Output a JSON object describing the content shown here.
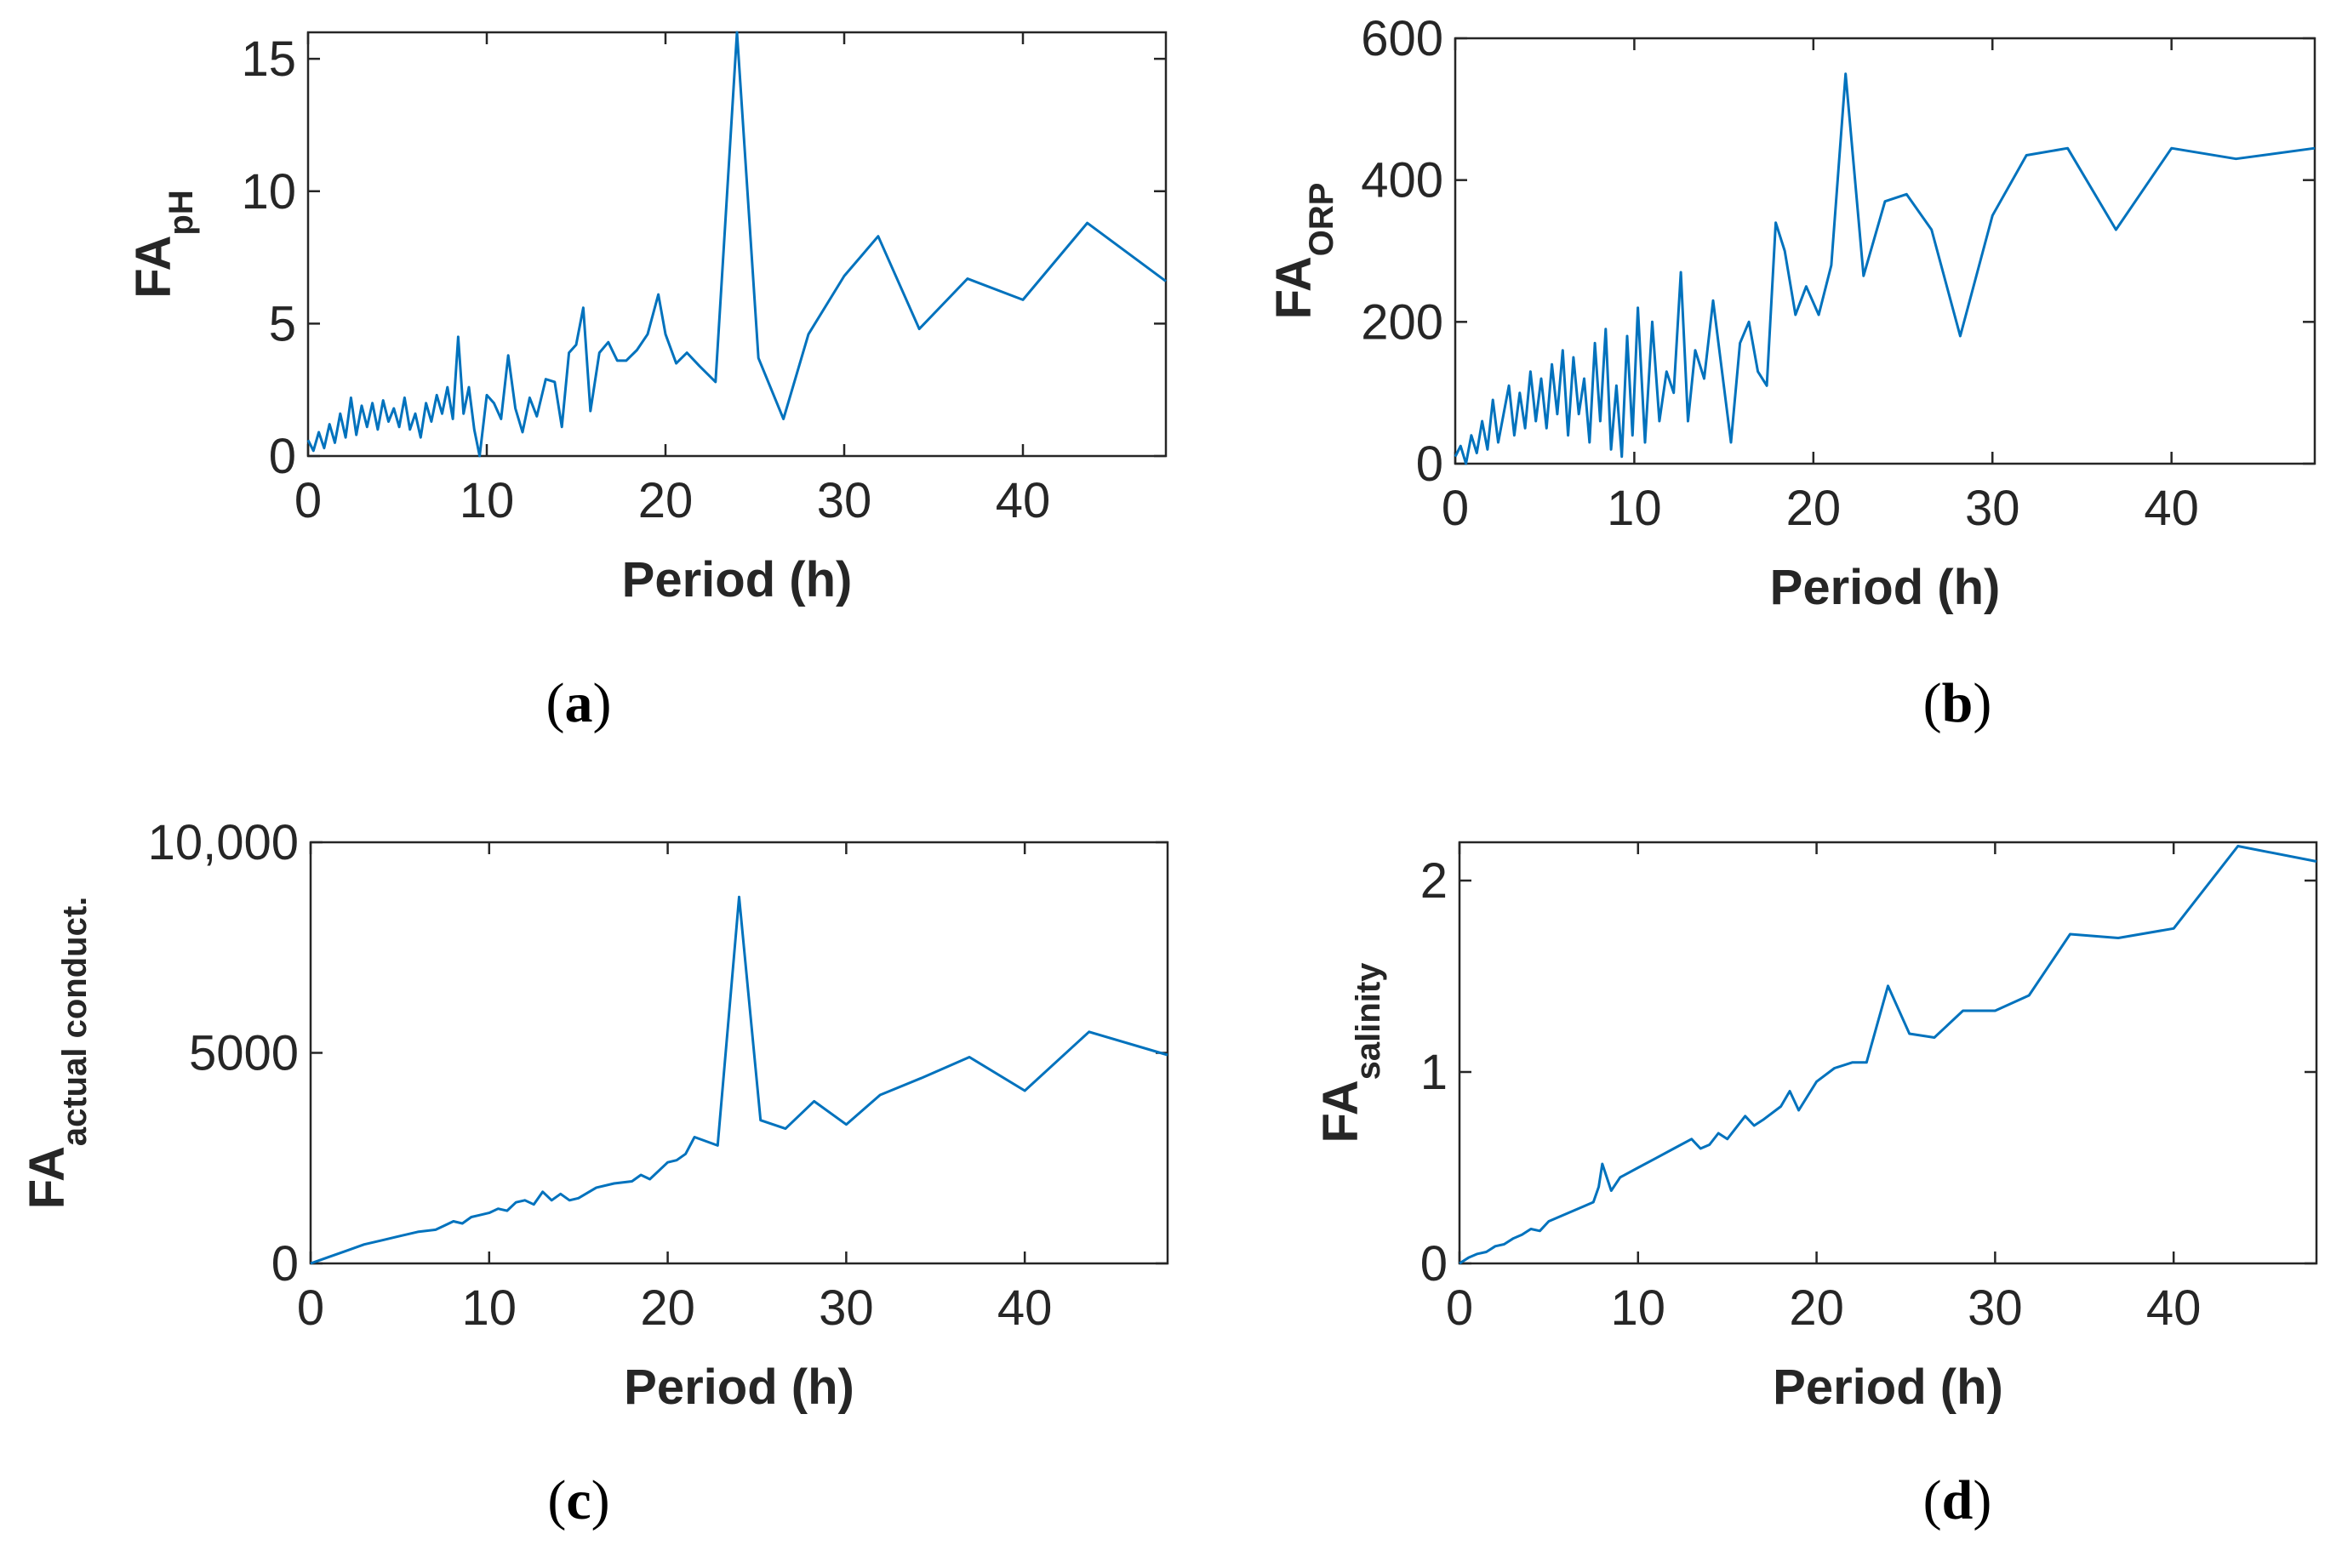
{
  "chart_data": [
    {
      "id": "a",
      "type": "line",
      "panel_label": "a",
      "xlabel": "Period (h)",
      "ylabel_main": "FA",
      "ylabel_sub": "pH",
      "xlim": [
        0,
        48
      ],
      "ylim": [
        0,
        16
      ],
      "xticks": [
        0,
        10,
        20,
        30,
        40
      ],
      "xtick_labels": [
        "0",
        "10",
        "20",
        "30",
        "40"
      ],
      "yticks": [
        0,
        5,
        10,
        15
      ],
      "ytick_labels": [
        "0",
        "5",
        "10",
        "15"
      ],
      "grid": false,
      "line_color": "#0072BD",
      "series": [
        {
          "x": [
            0,
            0.3,
            0.6,
            0.9,
            1.2,
            1.5,
            1.8,
            2.1,
            2.4,
            2.7,
            3.0,
            3.3,
            3.6,
            3.9,
            4.2,
            4.5,
            4.8,
            5.1,
            5.4,
            5.7,
            6.0,
            6.3,
            6.6,
            6.9,
            7.2,
            7.5,
            7.8,
            8.1,
            8.4,
            8.7,
            9.0,
            9.3,
            9.6,
            10.0,
            10.4,
            10.8,
            11.2,
            11.6,
            12.0,
            12.4,
            12.8,
            13.3,
            13.8,
            14.2,
            14.6,
            15.0,
            15.4,
            15.8,
            16.3,
            16.8,
            17.3,
            17.8,
            18.4,
            19.0,
            19.6,
            20.0,
            20.6,
            21.2,
            21.9,
            22.8,
            24.0,
            25.2,
            26.6,
            28.0,
            30.0,
            31.9,
            34.2,
            36.9,
            40.0,
            43.6,
            48.0
          ],
          "y": [
            0.6,
            0.2,
            0.9,
            0.3,
            1.2,
            0.5,
            1.6,
            0.7,
            2.2,
            0.8,
            1.9,
            1.1,
            2.0,
            1.0,
            2.1,
            1.3,
            1.8,
            1.1,
            2.2,
            1.0,
            1.6,
            0.7,
            2.0,
            1.3,
            2.3,
            1.6,
            2.6,
            1.4,
            4.5,
            1.6,
            2.6,
            1.0,
            0.0,
            2.3,
            2.0,
            1.4,
            3.8,
            1.8,
            0.9,
            2.2,
            1.5,
            2.9,
            2.8,
            1.1,
            3.9,
            4.2,
            5.6,
            1.7,
            3.9,
            4.3,
            3.6,
            3.6,
            4.0,
            4.6,
            6.1,
            4.6,
            3.5,
            3.9,
            3.4,
            2.8,
            16.0,
            3.7,
            1.4,
            4.6,
            6.8,
            8.3,
            4.8,
            6.7,
            5.9,
            8.8,
            6.6
          ]
        }
      ]
    },
    {
      "id": "b",
      "type": "line",
      "panel_label": "b",
      "xlabel": "Period (h)",
      "ylabel_main": "FA",
      "ylabel_sub": "ORP",
      "xlim": [
        0,
        48
      ],
      "ylim": [
        0,
        600
      ],
      "xticks": [
        0,
        10,
        20,
        30,
        40
      ],
      "xtick_labels": [
        "0",
        "10",
        "20",
        "30",
        "40"
      ],
      "yticks": [
        0,
        200,
        400,
        600
      ],
      "ytick_labels": [
        "0",
        "200",
        "400",
        "600"
      ],
      "grid": false,
      "line_color": "#0072BD",
      "series": [
        {
          "x": [
            0,
            0.3,
            0.6,
            0.9,
            1.2,
            1.5,
            1.8,
            2.1,
            2.4,
            2.7,
            3.0,
            3.3,
            3.6,
            3.9,
            4.2,
            4.5,
            4.8,
            5.1,
            5.4,
            5.7,
            6.0,
            6.3,
            6.6,
            6.9,
            7.2,
            7.5,
            7.8,
            8.1,
            8.4,
            8.7,
            9.0,
            9.3,
            9.6,
            9.9,
            10.2,
            10.6,
            11.0,
            11.4,
            11.8,
            12.2,
            12.6,
            13.0,
            13.4,
            13.9,
            14.4,
            14.9,
            15.4,
            15.9,
            16.4,
            16.9,
            17.4,
            17.9,
            18.4,
            19.0,
            19.6,
            20.3,
            21.0,
            21.8,
            22.8,
            24.0,
            25.2,
            26.6,
            28.2,
            30.0,
            31.9,
            34.2,
            36.9,
            40.0,
            43.6,
            48.0
          ],
          "y": [
            10,
            25,
            0,
            40,
            15,
            60,
            20,
            90,
            30,
            70,
            110,
            40,
            100,
            50,
            130,
            60,
            120,
            50,
            140,
            70,
            160,
            40,
            150,
            70,
            120,
            30,
            170,
            60,
            190,
            20,
            110,
            10,
            180,
            40,
            220,
            30,
            200,
            60,
            130,
            100,
            270,
            60,
            160,
            120,
            230,
            130,
            30,
            170,
            200,
            130,
            110,
            340,
            300,
            210,
            250,
            210,
            280,
            550,
            265,
            370,
            380,
            330,
            180,
            350,
            435,
            445,
            330,
            445,
            430,
            445
          ]
        }
      ]
    },
    {
      "id": "c",
      "type": "line",
      "panel_label": "c",
      "xlabel": "Period (h)",
      "ylabel_main": "FA",
      "ylabel_sub": "actual conduct.",
      "xlim": [
        0,
        48
      ],
      "ylim": [
        0,
        10000
      ],
      "xticks": [
        0,
        10,
        20,
        30,
        40
      ],
      "xtick_labels": [
        "0",
        "10",
        "20",
        "30",
        "40"
      ],
      "yticks": [
        0,
        5000,
        10000
      ],
      "ytick_labels": [
        "0",
        "5000",
        "10,000"
      ],
      "grid": false,
      "line_color": "#0072BD",
      "series": [
        {
          "x": [
            0,
            1,
            2,
            3,
            4,
            5,
            6,
            7,
            7.5,
            8,
            8.5,
            9,
            9.5,
            10,
            10.5,
            11,
            11.5,
            12,
            12.5,
            13,
            13.5,
            14,
            14.5,
            15,
            16,
            17,
            18,
            18.5,
            19,
            20,
            20.5,
            21,
            21.5,
            22.8,
            24.0,
            25.2,
            26.6,
            28.2,
            30.0,
            31.9,
            34.2,
            36.9,
            40.0,
            43.6,
            48.0
          ],
          "y": [
            0,
            150,
            300,
            450,
            550,
            650,
            750,
            800,
            900,
            1000,
            950,
            1100,
            1150,
            1200,
            1300,
            1250,
            1450,
            1500,
            1400,
            1700,
            1500,
            1650,
            1500,
            1550,
            1800,
            1900,
            1950,
            2100,
            2000,
            2400,
            2450,
            2600,
            3000,
            2800,
            8700,
            3400,
            3200,
            3850,
            3300,
            4000,
            4400,
            4900,
            4100,
            5500,
            4950
          ]
        }
      ]
    },
    {
      "id": "d",
      "type": "line",
      "panel_label": "d",
      "xlabel": "Period (h)",
      "ylabel_main": "FA",
      "ylabel_sub": "salinity",
      "xlim": [
        0,
        48
      ],
      "ylim": [
        0,
        2.2
      ],
      "xticks": [
        0,
        10,
        20,
        30,
        40
      ],
      "xtick_labels": [
        "0",
        "10",
        "20",
        "30",
        "40"
      ],
      "yticks": [
        0,
        1,
        2
      ],
      "ytick_labels": [
        "0",
        "1",
        "2"
      ],
      "grid": false,
      "line_color": "#0072BD",
      "series": [
        {
          "x": [
            0,
            0.5,
            1,
            1.5,
            2,
            2.5,
            3,
            3.5,
            4,
            4.5,
            5,
            5.5,
            6,
            6.5,
            7,
            7.5,
            7.8,
            8.0,
            8.5,
            9,
            10,
            11,
            12,
            13,
            13.5,
            14,
            14.5,
            15,
            16,
            16.5,
            17,
            18,
            18.5,
            19,
            20,
            21,
            22,
            22.8,
            24.0,
            25.2,
            26.6,
            28.2,
            30.0,
            31.9,
            34.2,
            36.9,
            40.0,
            43.6,
            48.0
          ],
          "y": [
            0,
            0.03,
            0.05,
            0.06,
            0.09,
            0.1,
            0.13,
            0.15,
            0.18,
            0.17,
            0.22,
            0.24,
            0.26,
            0.28,
            0.3,
            0.32,
            0.4,
            0.52,
            0.38,
            0.45,
            0.5,
            0.55,
            0.6,
            0.65,
            0.6,
            0.62,
            0.68,
            0.65,
            0.77,
            0.72,
            0.75,
            0.82,
            0.9,
            0.8,
            0.95,
            1.02,
            1.05,
            1.05,
            1.45,
            1.2,
            1.18,
            1.32,
            1.32,
            1.4,
            1.72,
            1.7,
            1.75,
            2.18,
            2.1
          ]
        }
      ]
    }
  ]
}
